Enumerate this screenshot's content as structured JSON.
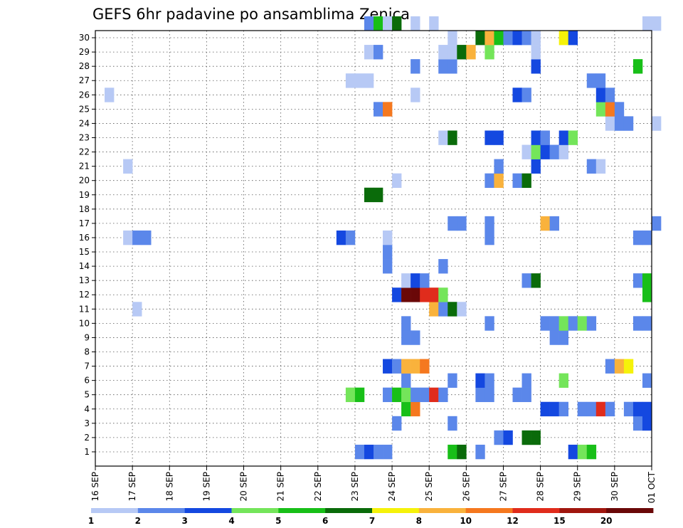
{
  "chart_data": {
    "type": "heatmap",
    "title": "GEFS 6hr padavine po ansamblima Zenica",
    "xlabel": "",
    "ylabel": "",
    "x_tick_labels": [
      "16 SEP",
      "17 SEP",
      "18 SEP",
      "19 SEP",
      "20 SEP",
      "21 SEP",
      "22 SEP",
      "23 SEP",
      "24 SEP",
      "25 SEP",
      "26 SEP",
      "27 SEP",
      "28 SEP",
      "29 SEP",
      "30 SEP",
      "01 OCT"
    ],
    "x_time_step": "6hr",
    "y_tick_labels": [
      "1",
      "2",
      "3",
      "4",
      "5",
      "6",
      "7",
      "8",
      "9",
      "10",
      "11",
      "12",
      "13",
      "14",
      "15",
      "16",
      "17",
      "18",
      "19",
      "20",
      "21",
      "22",
      "23",
      "24",
      "25",
      "26",
      "27",
      "28",
      "29",
      "30"
    ],
    "grid": true,
    "colorbar": {
      "labels": [
        "1",
        "2",
        "3",
        "4",
        "5",
        "6",
        "7",
        "8",
        "10",
        "12",
        "15",
        "20"
      ],
      "colors": [
        "#b7c9f5",
        "#5b87ea",
        "#1448e0",
        "#74e55a",
        "#18bf18",
        "#0a6b0a",
        "#f5f20a",
        "#f9b23c",
        "#f5781f",
        "#e02c1c",
        "#a0160e",
        "#6a0808"
      ]
    },
    "cells": [
      {
        "t": 28,
        "m": 0,
        "c": 1
      },
      {
        "t": 29,
        "m": 0,
        "c": 2
      },
      {
        "t": 30,
        "m": 0,
        "c": 1
      },
      {
        "t": 31,
        "m": 0,
        "c": 1
      },
      {
        "t": 38,
        "m": 0,
        "c": 4
      },
      {
        "t": 39,
        "m": 0,
        "c": 5
      },
      {
        "t": 41,
        "m": 0,
        "c": 1
      },
      {
        "t": 51,
        "m": 0,
        "c": 2
      },
      {
        "t": 52,
        "m": 0,
        "c": 3
      },
      {
        "t": 53,
        "m": 0,
        "c": 4
      },
      {
        "t": 43,
        "m": 1,
        "c": 1
      },
      {
        "t": 44,
        "m": 1,
        "c": 2
      },
      {
        "t": 46,
        "m": 1,
        "c": 5
      },
      {
        "t": 47,
        "m": 1,
        "c": 5
      },
      {
        "t": 32,
        "m": 2,
        "c": 1
      },
      {
        "t": 38,
        "m": 2,
        "c": 1
      },
      {
        "t": 58,
        "m": 2,
        "c": 1
      },
      {
        "t": 59,
        "m": 2,
        "c": 2
      },
      {
        "t": 33,
        "m": 3,
        "c": 4
      },
      {
        "t": 34,
        "m": 3,
        "c": 8
      },
      {
        "t": 48,
        "m": 3,
        "c": 2
      },
      {
        "t": 49,
        "m": 3,
        "c": 2
      },
      {
        "t": 50,
        "m": 3,
        "c": 1
      },
      {
        "t": 52,
        "m": 3,
        "c": 1
      },
      {
        "t": 53,
        "m": 3,
        "c": 1
      },
      {
        "t": 54,
        "m": 3,
        "c": 9
      },
      {
        "t": 55,
        "m": 3,
        "c": 1
      },
      {
        "t": 57,
        "m": 3,
        "c": 1
      },
      {
        "t": 58,
        "m": 3,
        "c": 2
      },
      {
        "t": 59,
        "m": 3,
        "c": 2
      },
      {
        "t": 27,
        "m": 4,
        "c": 3
      },
      {
        "t": 28,
        "m": 4,
        "c": 4
      },
      {
        "t": 31,
        "m": 4,
        "c": 1
      },
      {
        "t": 32,
        "m": 4,
        "c": 4
      },
      {
        "t": 33,
        "m": 4,
        "c": 3
      },
      {
        "t": 34,
        "m": 4,
        "c": 1
      },
      {
        "t": 35,
        "m": 4,
        "c": 1
      },
      {
        "t": 36,
        "m": 4,
        "c": 9
      },
      {
        "t": 37,
        "m": 4,
        "c": 1
      },
      {
        "t": 41,
        "m": 4,
        "c": 1
      },
      {
        "t": 42,
        "m": 4,
        "c": 1
      },
      {
        "t": 45,
        "m": 4,
        "c": 1
      },
      {
        "t": 46,
        "m": 4,
        "c": 1
      },
      {
        "t": 33,
        "m": 5,
        "c": 1
      },
      {
        "t": 38,
        "m": 5,
        "c": 1
      },
      {
        "t": 41,
        "m": 5,
        "c": 2
      },
      {
        "t": 42,
        "m": 5,
        "c": 1
      },
      {
        "t": 46,
        "m": 5,
        "c": 1
      },
      {
        "t": 50,
        "m": 5,
        "c": 3
      },
      {
        "t": 59,
        "m": 5,
        "c": 1
      },
      {
        "t": 31,
        "m": 6,
        "c": 2
      },
      {
        "t": 32,
        "m": 6,
        "c": 1
      },
      {
        "t": 33,
        "m": 6,
        "c": 7
      },
      {
        "t": 34,
        "m": 6,
        "c": 7
      },
      {
        "t": 35,
        "m": 6,
        "c": 8
      },
      {
        "t": 55,
        "m": 6,
        "c": 1
      },
      {
        "t": 56,
        "m": 6,
        "c": 7
      },
      {
        "t": 57,
        "m": 6,
        "c": 6
      },
      {
        "t": 33,
        "m": 8,
        "c": 1
      },
      {
        "t": 34,
        "m": 8,
        "c": 1
      },
      {
        "t": 49,
        "m": 8,
        "c": 1
      },
      {
        "t": 50,
        "m": 8,
        "c": 1
      },
      {
        "t": 33,
        "m": 9,
        "c": 1
      },
      {
        "t": 42,
        "m": 9,
        "c": 1
      },
      {
        "t": 48,
        "m": 9,
        "c": 1
      },
      {
        "t": 49,
        "m": 9,
        "c": 1
      },
      {
        "t": 50,
        "m": 9,
        "c": 3
      },
      {
        "t": 51,
        "m": 9,
        "c": 1
      },
      {
        "t": 52,
        "m": 9,
        "c": 3
      },
      {
        "t": 53,
        "m": 9,
        "c": 1
      },
      {
        "t": 58,
        "m": 9,
        "c": 1
      },
      {
        "t": 59,
        "m": 9,
        "c": 1
      },
      {
        "t": 4,
        "m": 10,
        "c": 0
      },
      {
        "t": 36,
        "m": 10,
        "c": 7
      },
      {
        "t": 37,
        "m": 10,
        "c": 1
      },
      {
        "t": 38,
        "m": 10,
        "c": 5
      },
      {
        "t": 39,
        "m": 10,
        "c": 0
      },
      {
        "t": 32,
        "m": 11,
        "c": 2
      },
      {
        "t": 33,
        "m": 11,
        "c": 11
      },
      {
        "t": 34,
        "m": 11,
        "c": 11
      },
      {
        "t": 35,
        "m": 11,
        "c": 9
      },
      {
        "t": 36,
        "m": 11,
        "c": 9
      },
      {
        "t": 37,
        "m": 11,
        "c": 3
      },
      {
        "t": 59,
        "m": 11,
        "c": 4
      },
      {
        "t": 33,
        "m": 12,
        "c": 0
      },
      {
        "t": 34,
        "m": 12,
        "c": 2
      },
      {
        "t": 35,
        "m": 12,
        "c": 1
      },
      {
        "t": 46,
        "m": 12,
        "c": 1
      },
      {
        "t": 47,
        "m": 12,
        "c": 5
      },
      {
        "t": 58,
        "m": 12,
        "c": 1
      },
      {
        "t": 59,
        "m": 12,
        "c": 4
      },
      {
        "t": 31,
        "m": 13,
        "c": 1
      },
      {
        "t": 37,
        "m": 13,
        "c": 1
      },
      {
        "t": 31,
        "m": 14,
        "c": 1
      },
      {
        "t": 3,
        "m": 15,
        "c": 0
      },
      {
        "t": 4,
        "m": 15,
        "c": 1
      },
      {
        "t": 5,
        "m": 15,
        "c": 1
      },
      {
        "t": 26,
        "m": 15,
        "c": 2
      },
      {
        "t": 27,
        "m": 15,
        "c": 1
      },
      {
        "t": 31,
        "m": 15,
        "c": 0
      },
      {
        "t": 42,
        "m": 15,
        "c": 1
      },
      {
        "t": 58,
        "m": 15,
        "c": 1
      },
      {
        "t": 59,
        "m": 15,
        "c": 1
      },
      {
        "t": 38,
        "m": 16,
        "c": 1
      },
      {
        "t": 39,
        "m": 16,
        "c": 1
      },
      {
        "t": 42,
        "m": 16,
        "c": 1
      },
      {
        "t": 48,
        "m": 16,
        "c": 7
      },
      {
        "t": 49,
        "m": 16,
        "c": 1
      },
      {
        "t": 60,
        "m": 16,
        "c": 1
      },
      {
        "t": 29,
        "m": 18,
        "c": 5
      },
      {
        "t": 30,
        "m": 18,
        "c": 5
      },
      {
        "t": 32,
        "m": 19,
        "c": 0
      },
      {
        "t": 42,
        "m": 19,
        "c": 1
      },
      {
        "t": 43,
        "m": 19,
        "c": 7
      },
      {
        "t": 45,
        "m": 19,
        "c": 1
      },
      {
        "t": 46,
        "m": 19,
        "c": 5
      },
      {
        "t": 3,
        "m": 20,
        "c": 0
      },
      {
        "t": 43,
        "m": 20,
        "c": 1
      },
      {
        "t": 47,
        "m": 20,
        "c": 2
      },
      {
        "t": 53,
        "m": 20,
        "c": 1
      },
      {
        "t": 54,
        "m": 20,
        "c": 0
      },
      {
        "t": 46,
        "m": 21,
        "c": 0
      },
      {
        "t": 47,
        "m": 21,
        "c": 3
      },
      {
        "t": 48,
        "m": 21,
        "c": 2
      },
      {
        "t": 49,
        "m": 21,
        "c": 1
      },
      {
        "t": 50,
        "m": 21,
        "c": 0
      },
      {
        "t": 37,
        "m": 22,
        "c": 0
      },
      {
        "t": 38,
        "m": 22,
        "c": 5
      },
      {
        "t": 42,
        "m": 22,
        "c": 2
      },
      {
        "t": 43,
        "m": 22,
        "c": 2
      },
      {
        "t": 47,
        "m": 22,
        "c": 2
      },
      {
        "t": 48,
        "m": 22,
        "c": 1
      },
      {
        "t": 50,
        "m": 22,
        "c": 2
      },
      {
        "t": 51,
        "m": 22,
        "c": 3
      },
      {
        "t": 55,
        "m": 23,
        "c": 0
      },
      {
        "t": 56,
        "m": 23,
        "c": 1
      },
      {
        "t": 57,
        "m": 23,
        "c": 1
      },
      {
        "t": 60,
        "m": 23,
        "c": 0
      },
      {
        "t": 30,
        "m": 24,
        "c": 1
      },
      {
        "t": 31,
        "m": 24,
        "c": 8
      },
      {
        "t": 54,
        "m": 24,
        "c": 3
      },
      {
        "t": 55,
        "m": 24,
        "c": 8
      },
      {
        "t": 56,
        "m": 24,
        "c": 1
      },
      {
        "t": 1,
        "m": 25,
        "c": 0
      },
      {
        "t": 34,
        "m": 25,
        "c": 0
      },
      {
        "t": 45,
        "m": 25,
        "c": 2
      },
      {
        "t": 46,
        "m": 25,
        "c": 1
      },
      {
        "t": 54,
        "m": 25,
        "c": 2
      },
      {
        "t": 55,
        "m": 25,
        "c": 1
      },
      {
        "t": 27,
        "m": 26,
        "c": 0
      },
      {
        "t": 28,
        "m": 26,
        "c": 0
      },
      {
        "t": 29,
        "m": 26,
        "c": 0
      },
      {
        "t": 53,
        "m": 26,
        "c": 1
      },
      {
        "t": 54,
        "m": 26,
        "c": 1
      },
      {
        "t": 34,
        "m": 27,
        "c": 1
      },
      {
        "t": 37,
        "m": 27,
        "c": 1
      },
      {
        "t": 38,
        "m": 27,
        "c": 1
      },
      {
        "t": 47,
        "m": 27,
        "c": 2
      },
      {
        "t": 58,
        "m": 27,
        "c": 4
      },
      {
        "t": 29,
        "m": 28,
        "c": 0
      },
      {
        "t": 30,
        "m": 28,
        "c": 1
      },
      {
        "t": 37,
        "m": 28,
        "c": 0
      },
      {
        "t": 38,
        "m": 28,
        "c": 0
      },
      {
        "t": 39,
        "m": 28,
        "c": 5
      },
      {
        "t": 40,
        "m": 28,
        "c": 7
      },
      {
        "t": 42,
        "m": 28,
        "c": 3
      },
      {
        "t": 47,
        "m": 28,
        "c": 0
      },
      {
        "t": 38,
        "m": 29,
        "c": 0
      },
      {
        "t": 41,
        "m": 29,
        "c": 5
      },
      {
        "t": 42,
        "m": 29,
        "c": 7
      },
      {
        "t": 43,
        "m": 29,
        "c": 4
      },
      {
        "t": 44,
        "m": 29,
        "c": 1
      },
      {
        "t": 45,
        "m": 29,
        "c": 2
      },
      {
        "t": 46,
        "m": 29,
        "c": 1
      },
      {
        "t": 47,
        "m": 29,
        "c": 0
      },
      {
        "t": 50,
        "m": 29,
        "c": 6
      },
      {
        "t": 51,
        "m": 29,
        "c": 2
      },
      {
        "t": 29,
        "m": 30,
        "c": 1
      },
      {
        "t": 30,
        "m": 30,
        "c": 4
      },
      {
        "t": 31,
        "m": 30,
        "c": 0
      },
      {
        "t": 32,
        "m": 30,
        "c": 5
      },
      {
        "t": 34,
        "m": 30,
        "c": 0
      },
      {
        "t": 36,
        "m": 30,
        "c": 0
      },
      {
        "t": 59,
        "m": 30,
        "c": 0
      },
      {
        "t": 60,
        "m": 30,
        "c": 0
      }
    ]
  }
}
